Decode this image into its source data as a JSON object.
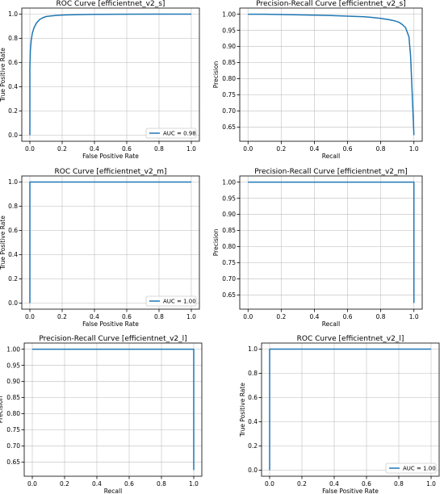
{
  "chart_data": [
    {
      "type": "line",
      "title": "ROC Curve [efficientnet_v2_s]",
      "xlabel": "False Positive Rate",
      "ylabel": "True Positive Rate",
      "xlim": [
        -0.05,
        1.05
      ],
      "ylim": [
        -0.05,
        1.05
      ],
      "xticks": [
        "0.0",
        "0.2",
        "0.4",
        "0.6",
        "0.8",
        "1.0"
      ],
      "yticks": [
        "0.0",
        "0.2",
        "0.4",
        "0.6",
        "0.8",
        "1.0"
      ],
      "grid": true,
      "legend": "lower right",
      "series": [
        {
          "name": "AUC = 0.98",
          "color": "#1f77b4",
          "x": [
            0.0,
            0.0,
            0.003,
            0.008,
            0.015,
            0.025,
            0.04,
            0.06,
            0.08,
            0.1,
            0.13,
            0.17,
            0.22,
            0.3,
            0.4,
            0.55,
            0.75,
            1.0
          ],
          "y": [
            0.0,
            0.55,
            0.7,
            0.78,
            0.84,
            0.885,
            0.925,
            0.955,
            0.97,
            0.98,
            0.985,
            0.99,
            0.993,
            0.996,
            0.998,
            0.999,
            1.0,
            1.0
          ]
        }
      ]
    },
    {
      "type": "line",
      "title": "Precision-Recall Curve [efficientnet_v2_s]",
      "xlabel": "Recall",
      "ylabel": "Precision",
      "xlim": [
        -0.05,
        1.05
      ],
      "ylim": [
        0.606,
        1.019
      ],
      "xticks": [
        "0.0",
        "0.2",
        "0.4",
        "0.6",
        "0.8",
        "1.0"
      ],
      "yticks": [
        "0.65",
        "0.70",
        "0.75",
        "0.80",
        "0.85",
        "0.90",
        "0.95",
        "1.00"
      ],
      "grid": true,
      "legend": "none",
      "series": [
        {
          "name": "",
          "color": "#1f77b4",
          "x": [
            0.0,
            0.1,
            0.2,
            0.3,
            0.4,
            0.5,
            0.6,
            0.7,
            0.75,
            0.8,
            0.85,
            0.88,
            0.91,
            0.93,
            0.95,
            0.97,
            0.98,
            0.99,
            1.0
          ],
          "y": [
            1.0,
            1.0,
            0.999,
            0.998,
            0.997,
            0.996,
            0.994,
            0.992,
            0.99,
            0.987,
            0.983,
            0.98,
            0.975,
            0.968,
            0.958,
            0.93,
            0.87,
            0.75,
            0.625
          ]
        }
      ]
    },
    {
      "type": "line",
      "title": "ROC Curve [efficientnet_v2_m]",
      "xlabel": "False Positive Rate",
      "ylabel": "True Positive Rate",
      "xlim": [
        -0.05,
        1.05
      ],
      "ylim": [
        -0.05,
        1.05
      ],
      "xticks": [
        "0.0",
        "0.2",
        "0.4",
        "0.6",
        "0.8",
        "1.0"
      ],
      "yticks": [
        "0.0",
        "0.2",
        "0.4",
        "0.6",
        "0.8",
        "1.0"
      ],
      "grid": true,
      "legend": "lower right",
      "series": [
        {
          "name": "AUC = 1.00",
          "color": "#1f77b4",
          "x": [
            0.0,
            0.0,
            1.0
          ],
          "y": [
            0.0,
            1.0,
            1.0
          ]
        }
      ]
    },
    {
      "type": "line",
      "title": "Precision-Recall Curve [efficientnet_v2_m]",
      "xlabel": "Recall",
      "ylabel": "Precision",
      "xlim": [
        -0.05,
        1.05
      ],
      "ylim": [
        0.606,
        1.019
      ],
      "xticks": [
        "0.0",
        "0.2",
        "0.4",
        "0.6",
        "0.8",
        "1.0"
      ],
      "yticks": [
        "0.65",
        "0.70",
        "0.75",
        "0.80",
        "0.85",
        "0.90",
        "0.95",
        "1.00"
      ],
      "grid": true,
      "legend": "none",
      "series": [
        {
          "name": "",
          "color": "#1f77b4",
          "x": [
            0.0,
            1.0,
            1.0
          ],
          "y": [
            1.0,
            1.0,
            0.625
          ]
        }
      ]
    },
    {
      "type": "line",
      "title": "Precision-Recall Curve [efficientnet_v2_l]",
      "xlabel": "Recall",
      "ylabel": "Precision",
      "xlim": [
        -0.05,
        1.05
      ],
      "ylim": [
        0.606,
        1.019
      ],
      "xticks": [
        "0.0",
        "0.2",
        "0.4",
        "0.6",
        "0.8",
        "1.0"
      ],
      "yticks": [
        "0.65",
        "0.70",
        "0.75",
        "0.80",
        "0.85",
        "0.90",
        "0.95",
        "1.00"
      ],
      "grid": true,
      "legend": "none",
      "series": [
        {
          "name": "",
          "color": "#1f77b4",
          "x": [
            0.0,
            1.0,
            1.0
          ],
          "y": [
            1.0,
            1.0,
            0.625
          ]
        }
      ]
    },
    {
      "type": "line",
      "title": "ROC Curve [efficientnet_v2_l]",
      "xlabel": "False Positive Rate",
      "ylabel": "True Positive Rate",
      "xlim": [
        -0.05,
        1.05
      ],
      "ylim": [
        -0.05,
        1.05
      ],
      "xticks": [
        "0.0",
        "0.2",
        "0.4",
        "0.6",
        "0.8",
        "1.0"
      ],
      "yticks": [
        "0.0",
        "0.2",
        "0.4",
        "0.6",
        "0.8",
        "1.0"
      ],
      "grid": true,
      "legend": "lower right",
      "series": [
        {
          "name": "AUC = 1.00",
          "color": "#1f77b4",
          "x": [
            0.0,
            0.0,
            1.0
          ],
          "y": [
            0.0,
            1.0,
            1.0
          ]
        }
      ]
    }
  ]
}
